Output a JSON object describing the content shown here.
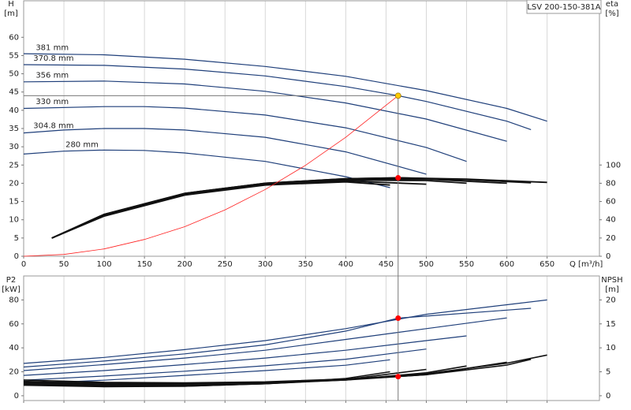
{
  "chart_data": [
    {
      "type": "line",
      "label": "LSV 200-150-381A",
      "ylabel": "H",
      "yunit": "[m]",
      "y2label": "eta",
      "y2unit": "[%]",
      "xlabel": "Q [m³/h]",
      "xlim": [
        0,
        715
      ],
      "xticks": [
        0,
        50,
        100,
        150,
        200,
        250,
        300,
        350,
        400,
        450,
        500,
        550,
        600,
        650
      ],
      "ylim": [
        0,
        70
      ],
      "yticks": [
        0,
        5,
        10,
        15,
        20,
        25,
        30,
        35,
        40,
        45,
        50,
        55,
        60
      ],
      "y2lim": [
        0,
        280
      ],
      "y2ticks": [
        0,
        20,
        40,
        60,
        80,
        100
      ],
      "grid": "x",
      "series": [
        {
          "name": "381 mm",
          "color": "#1f3f7a",
          "x": [
            0,
            100,
            200,
            300,
            400,
            500,
            600,
            650
          ],
          "values": [
            55.5,
            55.2,
            54,
            52,
            49.3,
            45.4,
            40.5,
            37
          ]
        },
        {
          "name": "370.8 mm",
          "color": "#1f3f7a",
          "x": [
            0,
            100,
            200,
            300,
            400,
            465,
            500,
            600,
            630
          ],
          "values": [
            52.5,
            52.3,
            51.3,
            49.4,
            46.5,
            44,
            42.4,
            37,
            34.7
          ]
        },
        {
          "name": "356 mm",
          "color": "#1f3f7a",
          "x": [
            0,
            100,
            200,
            300,
            400,
            500,
            600
          ],
          "values": [
            47.8,
            48,
            47.2,
            45.2,
            42,
            37.6,
            31.5
          ]
        },
        {
          "name": "330 mm",
          "color": "#1f3f7a",
          "x": [
            0,
            100,
            150,
            200,
            300,
            400,
            500,
            550
          ],
          "values": [
            40.5,
            41,
            41,
            40.6,
            38.7,
            35.2,
            29.8,
            26
          ]
        },
        {
          "name": "304.8 mm",
          "color": "#1f3f7a",
          "x": [
            0,
            50,
            100,
            150,
            200,
            300,
            400,
            500
          ],
          "values": [
            33.8,
            34.6,
            35,
            35,
            34.6,
            32.6,
            28.6,
            22.5
          ]
        },
        {
          "name": "280 mm",
          "color": "#1f3f7a",
          "x": [
            0,
            50,
            100,
            150,
            200,
            300,
            400,
            455
          ],
          "values": [
            28,
            28.8,
            29.1,
            29,
            28.3,
            26,
            21.8,
            18.8
          ]
        },
        {
          "axis": "y2",
          "color": "#111111",
          "x": [
            35,
            100,
            200,
            300,
            400,
            465,
            550,
            650
          ],
          "values": [
            20,
            46,
            69,
            80,
            85,
            86,
            84.5,
            81
          ]
        },
        {
          "axis": "y2",
          "color": "#111111",
          "x": [
            35,
            100,
            200,
            300,
            400,
            465,
            550,
            630
          ],
          "values": [
            20,
            46,
            69,
            80,
            85,
            86,
            84,
            80.5
          ]
        },
        {
          "axis": "y2",
          "color": "#111111",
          "x": [
            35,
            100,
            200,
            300,
            400,
            500,
            600
          ],
          "values": [
            20,
            45.5,
            68.5,
            79.5,
            84.5,
            84.5,
            80
          ]
        },
        {
          "axis": "y2",
          "color": "#111111",
          "x": [
            35,
            100,
            200,
            300,
            400,
            500,
            550
          ],
          "values": [
            20,
            45,
            68,
            79,
            83.5,
            83,
            80
          ]
        },
        {
          "axis": "y2",
          "color": "#111111",
          "x": [
            35,
            100,
            200,
            300,
            400,
            500
          ],
          "values": [
            20,
            44.5,
            67.5,
            78.5,
            82.5,
            79
          ]
        },
        {
          "axis": "y2",
          "color": "#111111",
          "x": [
            35,
            100,
            200,
            300,
            400,
            455
          ],
          "values": [
            20,
            44,
            67,
            78,
            81.5,
            78
          ]
        },
        {
          "color": "#ff2020",
          "x": [
            0,
            50,
            100,
            150,
            200,
            250,
            300,
            350,
            400,
            465
          ],
          "values": [
            0,
            0.5,
            2,
            4.6,
            8.1,
            12.7,
            18.3,
            24.9,
            32.6,
            44
          ]
        }
      ],
      "points": [
        {
          "x": 465,
          "y": 44,
          "color": "#ffcc00"
        },
        {
          "x": 465,
          "y": 86,
          "axis": "y2",
          "color": "#ff0000"
        }
      ]
    },
    {
      "type": "line",
      "ylabel": "P2",
      "yunit": "[kW]",
      "y2label": "NPSH",
      "y2unit": "[m]",
      "xlim": [
        0,
        715
      ],
      "xticks": [
        0,
        50,
        100,
        150,
        200,
        250,
        300,
        350,
        400,
        450,
        500,
        550,
        600,
        650
      ],
      "ylim": [
        -4,
        100
      ],
      "yticks": [
        0,
        20,
        40,
        60,
        80
      ],
      "y2lim": [
        -1,
        25
      ],
      "y2ticks": [
        0,
        5,
        10,
        15,
        20
      ],
      "grid": "x",
      "series": [
        {
          "color": "#1f3f7a",
          "x": [
            0,
            100,
            200,
            300,
            400,
            500,
            600,
            650
          ],
          "values": [
            27,
            32,
            38.5,
            46,
            56,
            68,
            76,
            80
          ]
        },
        {
          "color": "#1f3f7a",
          "x": [
            0,
            100,
            200,
            300,
            400,
            465,
            500,
            600,
            630
          ],
          "values": [
            24,
            29,
            35,
            42.5,
            54,
            64.8,
            66.5,
            71.5,
            73
          ]
        },
        {
          "color": "#1f3f7a",
          "x": [
            0,
            100,
            200,
            300,
            400,
            500,
            600
          ],
          "values": [
            21,
            26,
            31.5,
            38,
            47,
            56,
            65
          ]
        },
        {
          "color": "#1f3f7a",
          "x": [
            0,
            100,
            200,
            300,
            400,
            500,
            550
          ],
          "values": [
            17,
            21,
            26,
            31.5,
            38,
            46,
            50
          ]
        },
        {
          "color": "#1f3f7a",
          "x": [
            0,
            100,
            200,
            300,
            400,
            500
          ],
          "values": [
            13,
            16.5,
            20.5,
            25,
            30.5,
            39
          ]
        },
        {
          "color": "#1f3f7a",
          "x": [
            0,
            100,
            200,
            300,
            400,
            455
          ],
          "values": [
            10,
            13,
            17,
            21,
            25.5,
            30
          ]
        },
        {
          "axis": "y2",
          "color": "#111111",
          "x": [
            0,
            100,
            200,
            300,
            400,
            465,
            500,
            600,
            650
          ],
          "values": [
            3.3,
            2.8,
            2.7,
            2.9,
            3.5,
            4.1,
            4.6,
            6.8,
            8.5
          ]
        },
        {
          "axis": "y2",
          "color": "#111111",
          "x": [
            0,
            100,
            200,
            300,
            400,
            465,
            500,
            600,
            630
          ],
          "values": [
            3,
            2.6,
            2.5,
            2.8,
            3.4,
            4,
            4.4,
            6.4,
            7.6
          ]
        },
        {
          "axis": "y2",
          "color": "#111111",
          "x": [
            0,
            100,
            200,
            300,
            400,
            500,
            600
          ],
          "values": [
            2.8,
            2.4,
            2.3,
            2.6,
            3.3,
            4.4,
            7
          ]
        },
        {
          "axis": "y2",
          "color": "#111111",
          "x": [
            0,
            100,
            200,
            300,
            400,
            500,
            550
          ],
          "values": [
            2.6,
            2.2,
            2.2,
            2.5,
            3.3,
            4.8,
            6.2
          ]
        },
        {
          "axis": "y2",
          "color": "#111111",
          "x": [
            0,
            100,
            200,
            300,
            400,
            500
          ],
          "values": [
            2.4,
            2,
            2,
            2.5,
            3.4,
            5.5
          ]
        },
        {
          "axis": "y2",
          "color": "#111111",
          "x": [
            0,
            100,
            200,
            300,
            400,
            455
          ],
          "values": [
            2.2,
            1.9,
            2,
            2.5,
            3.6,
            5
          ]
        }
      ],
      "points": [
        {
          "x": 465,
          "y": 64.8,
          "color": "#ff0000"
        },
        {
          "x": 465,
          "y": 4,
          "axis": "y2",
          "color": "#ff0000"
        }
      ]
    }
  ]
}
